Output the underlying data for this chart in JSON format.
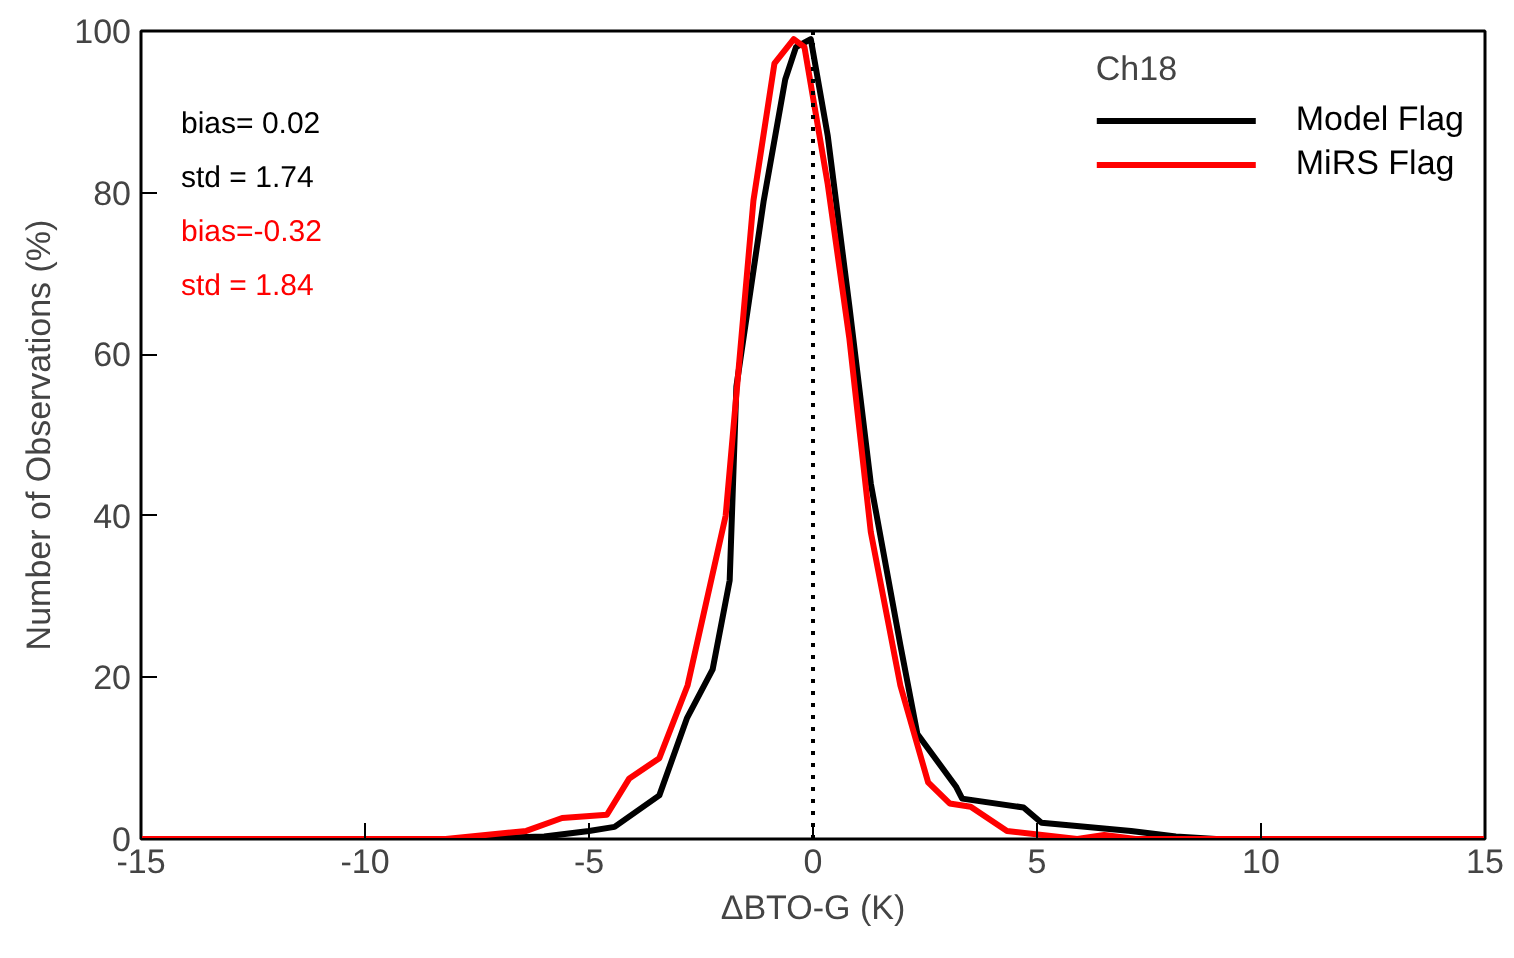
{
  "chart_data": {
    "type": "line",
    "xlabel": "ΔBTO-G (K)",
    "ylabel": "Number of Observations (%)",
    "legend_title": "Ch18",
    "xlim": [
      -15,
      15
    ],
    "xticks": [
      -15,
      -10,
      -5,
      0,
      5,
      10,
      15
    ],
    "ylim": [
      0,
      100
    ],
    "yticks": [
      0,
      20,
      40,
      60,
      80,
      100
    ],
    "series": [
      {
        "name": "Model Flag",
        "color": "#000000",
        "x": [
          -15,
          -8,
          -6,
          -5,
          -4.43,
          -3.43,
          -2.81,
          -2.24,
          -1.86,
          -1.71,
          -1.1,
          -0.62,
          -0.38,
          -0.05,
          0.33,
          0.81,
          1.29,
          1.95,
          2.33,
          3.19,
          3.33,
          4.7,
          5.1,
          7.1,
          8.1,
          9,
          15
        ],
        "values": [
          0,
          0,
          0.3,
          1,
          1.5,
          5.4,
          15,
          21,
          32,
          56,
          79,
          94,
          98,
          99,
          87,
          66,
          44,
          24,
          13,
          6.5,
          5,
          3.9,
          2,
          1,
          0.3,
          0,
          0
        ]
      },
      {
        "name": "MiRS Flag",
        "color": "#ff0000",
        "x": [
          -15,
          -8.2,
          -6.4,
          -5.6,
          -4.6,
          -4.1,
          -3.43,
          -2.8,
          -1.95,
          -1.71,
          -1.33,
          -0.86,
          -0.43,
          -0.19,
          0.33,
          0.81,
          1.29,
          1.95,
          2.57,
          3.05,
          3.52,
          4.33,
          5.9,
          6.5,
          7.2,
          15
        ],
        "values": [
          0,
          0,
          1,
          2.6,
          3,
          7.5,
          10,
          19,
          40,
          55,
          79,
          96,
          99,
          98,
          81,
          62,
          38,
          19,
          7,
          4.4,
          4,
          1,
          0,
          0.5,
          0,
          0
        ]
      }
    ],
    "ref_lines": [
      {
        "axis": "x",
        "value": 0,
        "label": null,
        "color": "#000000",
        "line_style": "dotted"
      }
    ],
    "annotations": [
      "bias= 0.02",
      "std = 1.74",
      "bias=-0.32",
      "std = 1.84"
    ],
    "legend": "top right",
    "grid": false,
    "marker": "none",
    "line_style": "solid"
  }
}
